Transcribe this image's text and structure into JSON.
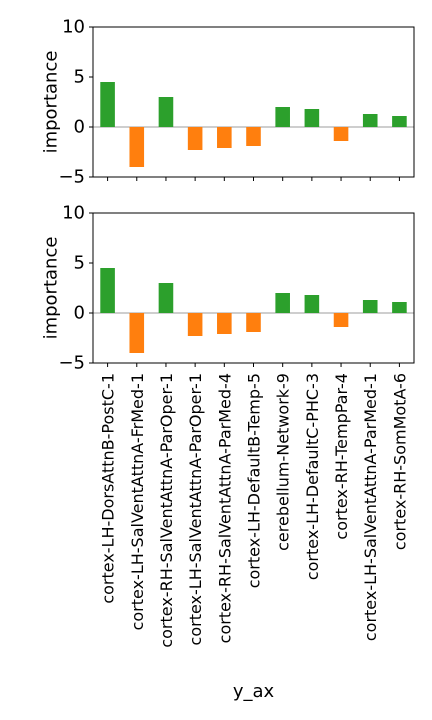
{
  "chart_data": [
    {
      "type": "bar",
      "ylabel": "importance",
      "xlabel": "",
      "ylim": [
        -5,
        10
      ],
      "yticks": [
        -5,
        0,
        5,
        10
      ],
      "ytick_labels": [
        "−5",
        "0",
        "5",
        "10"
      ],
      "show_x_tick_labels": false,
      "zero_line": true,
      "categories": [
        "cortex-LH-DorsAttnB-PostC-1",
        "cortex-LH-SalVentAttnA-FrMed-1",
        "cortex-RH-SalVentAttnA-ParOper-1",
        "cortex-LH-SalVentAttnA-ParOper-1",
        "cortex-RH-SalVentAttnA-ParMed-4",
        "cortex-LH-DefaultB-Temp-5",
        "cerebellum-Network-9",
        "cortex-LH-DefaultC-PHC-3",
        "cortex-RH-TempPar-4",
        "cortex-LH-SalVentAttnA-ParMed-1",
        "cortex-RH-SomMotA-6"
      ],
      "values": [
        4.5,
        -4.0,
        3.0,
        -2.3,
        -2.1,
        -1.9,
        2.0,
        1.8,
        -1.4,
        1.3,
        1.1
      ]
    },
    {
      "type": "bar",
      "ylabel": "importance",
      "xlabel": "y_ax",
      "ylim": [
        -5,
        10
      ],
      "yticks": [
        -5,
        0,
        5,
        10
      ],
      "ytick_labels": [
        "−5",
        "0",
        "5",
        "10"
      ],
      "show_x_tick_labels": true,
      "zero_line": true,
      "categories": [
        "cortex-LH-DorsAttnB-PostC-1",
        "cortex-LH-SalVentAttnA-FrMed-1",
        "cortex-RH-SalVentAttnA-ParOper-1",
        "cortex-LH-SalVentAttnA-ParOper-1",
        "cortex-RH-SalVentAttnA-ParMed-4",
        "cortex-LH-DefaultB-Temp-5",
        "cerebellum-Network-9",
        "cortex-LH-DefaultC-PHC-3",
        "cortex-RH-TempPar-4",
        "cortex-LH-SalVentAttnA-ParMed-1",
        "cortex-RH-SomMotA-6"
      ],
      "values": [
        4.5,
        -4.0,
        3.0,
        -2.3,
        -2.1,
        -1.9,
        2.0,
        1.8,
        -1.4,
        1.3,
        1.1
      ]
    }
  ],
  "colors": {
    "positive": "#2ca02c",
    "negative": "#ff7f0e",
    "zero_line": "#b0b0b0",
    "axis": "#000000"
  }
}
